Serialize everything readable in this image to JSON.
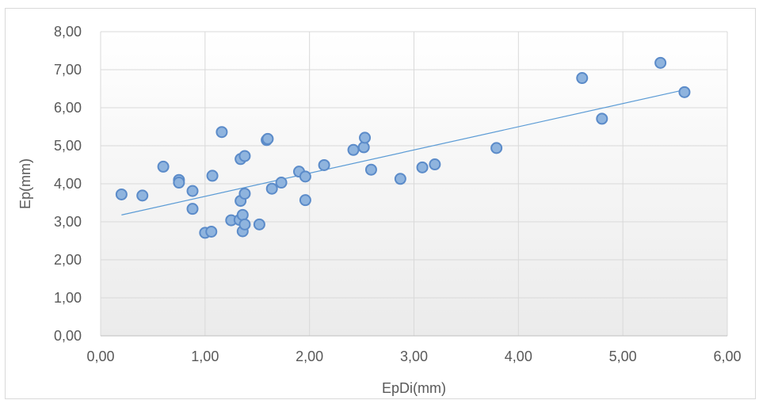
{
  "chart_data": {
    "type": "scatter",
    "title": "",
    "xlabel": "EpDi(mm)",
    "ylabel": "Ep(mm)",
    "xlim": [
      0,
      6
    ],
    "ylim": [
      0,
      8
    ],
    "x_ticks": [
      "0,00",
      "1,00",
      "2,00",
      "3,00",
      "4,00",
      "5,00",
      "6,00"
    ],
    "y_ticks": [
      "0,00",
      "1,00",
      "2,00",
      "3,00",
      "4,00",
      "5,00",
      "6,00",
      "7,00",
      "8,00"
    ],
    "grid": true,
    "legend": "none",
    "series": [
      {
        "points": [
          [
            0.2,
            3.72
          ],
          [
            0.4,
            3.69
          ],
          [
            0.6,
            4.45
          ],
          [
            0.75,
            4.1
          ],
          [
            0.75,
            4.03
          ],
          [
            0.88,
            3.81
          ],
          [
            0.88,
            3.34
          ],
          [
            1.0,
            2.71
          ],
          [
            1.06,
            2.74
          ],
          [
            1.07,
            4.21
          ],
          [
            1.16,
            5.36
          ],
          [
            1.25,
            3.04
          ],
          [
            1.33,
            3.05
          ],
          [
            1.34,
            3.55
          ],
          [
            1.34,
            4.65
          ],
          [
            1.36,
            3.18
          ],
          [
            1.36,
            2.75
          ],
          [
            1.38,
            3.74
          ],
          [
            1.38,
            2.93
          ],
          [
            1.38,
            4.73
          ],
          [
            1.52,
            2.93
          ],
          [
            1.59,
            5.15
          ],
          [
            1.6,
            5.18
          ],
          [
            1.64,
            3.87
          ],
          [
            1.73,
            4.03
          ],
          [
            1.9,
            4.32
          ],
          [
            1.96,
            3.57
          ],
          [
            1.96,
            4.19
          ],
          [
            2.14,
            4.49
          ],
          [
            2.42,
            4.89
          ],
          [
            2.52,
            4.96
          ],
          [
            2.53,
            5.21
          ],
          [
            2.59,
            4.37
          ],
          [
            2.87,
            4.13
          ],
          [
            3.08,
            4.43
          ],
          [
            3.2,
            4.51
          ],
          [
            3.79,
            4.94
          ],
          [
            4.61,
            6.78
          ],
          [
            4.8,
            5.71
          ],
          [
            5.36,
            7.18
          ],
          [
            5.59,
            6.41
          ]
        ]
      }
    ],
    "trendline": {
      "type": "linear",
      "x": [
        0.2,
        5.59
      ],
      "y": [
        3.18,
        6.47
      ]
    },
    "colors": {
      "marker_fill": "#8fb4de",
      "marker_stroke": "#5b8bc9",
      "trendline": "#5b9bd5",
      "grid": "#d9d9d9",
      "axis": "#bfbfbf"
    }
  }
}
